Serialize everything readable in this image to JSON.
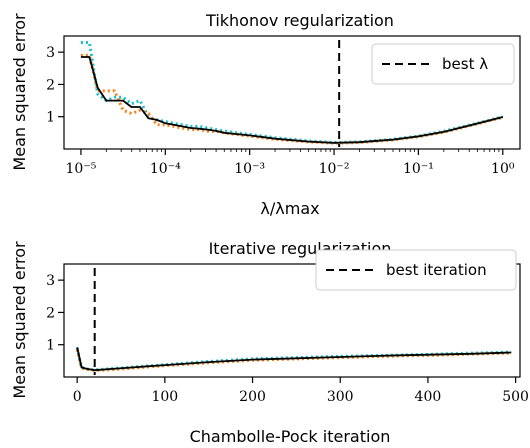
{
  "chart_data": [
    {
      "type": "line",
      "title": "Tikhonov regularization",
      "xlabel": "λ/λmax",
      "ylabel": "Mean squared error",
      "xscale": "log",
      "xlim": [
        6.3e-06,
        1.6
      ],
      "ylim": [
        0.0,
        3.5
      ],
      "xtick_labels": [
        "10⁻⁵",
        "10⁻⁴",
        "10⁻³",
        "10⁻²",
        "10⁻¹",
        "10⁰"
      ],
      "ytick_labels": [
        "1",
        "2",
        "3"
      ],
      "legend": {
        "position": "top-right",
        "entries": [
          "best λ"
        ]
      },
      "best_value": 0.0115,
      "series": [
        {
          "color": "#17becf",
          "style": "dotted",
          "x": [
            1e-05,
            1.26e-05,
            1.58e-05,
            2e-05,
            2.51e-05,
            3.16e-05,
            3.98e-05,
            5.01e-05,
            6.31e-05,
            7.94e-05,
            0.0001,
            0.000126,
            0.000158,
            0.0002,
            0.000251,
            0.000316,
            0.000398,
            0.000501,
            0.001,
            0.002,
            0.005,
            0.01,
            0.02,
            0.05,
            0.1,
            0.2,
            0.5,
            1.0
          ],
          "y": [
            3.3,
            3.3,
            1.7,
            1.5,
            1.6,
            1.6,
            1.4,
            1.5,
            1.0,
            0.9,
            0.85,
            0.8,
            0.75,
            0.7,
            0.7,
            0.65,
            0.6,
            0.55,
            0.45,
            0.35,
            0.25,
            0.2,
            0.22,
            0.3,
            0.4,
            0.55,
            0.8,
            1.0
          ]
        },
        {
          "color": "#ff7f0e",
          "style": "dotted",
          "x": [
            1e-05,
            1.26e-05,
            1.58e-05,
            2e-05,
            2.51e-05,
            3.16e-05,
            3.98e-05,
            5.01e-05,
            6.31e-05,
            7.94e-05,
            0.0001,
            0.000126,
            0.000158,
            0.0002,
            0.000251,
            0.000316,
            0.000398,
            0.000501,
            0.001,
            0.002,
            0.005,
            0.01,
            0.02,
            0.05,
            0.1,
            0.2,
            0.5,
            1.0
          ],
          "y": [
            2.9,
            2.9,
            1.8,
            1.8,
            1.8,
            1.2,
            1.1,
            1.2,
            1.1,
            0.75,
            0.75,
            0.7,
            0.65,
            0.6,
            0.6,
            0.55,
            0.55,
            0.5,
            0.4,
            0.3,
            0.22,
            0.18,
            0.2,
            0.28,
            0.38,
            0.52,
            0.78,
            0.98
          ]
        },
        {
          "color": "#000000",
          "style": "solid",
          "x": [
            1e-05,
            1.26e-05,
            1.58e-05,
            2e-05,
            2.51e-05,
            3.16e-05,
            3.98e-05,
            5.01e-05,
            6.31e-05,
            7.94e-05,
            0.0001,
            0.000126,
            0.000158,
            0.0002,
            0.000251,
            0.000316,
            0.000398,
            0.000501,
            0.001,
            0.002,
            0.005,
            0.01,
            0.02,
            0.05,
            0.1,
            0.2,
            0.5,
            1.0
          ],
          "y": [
            2.85,
            2.85,
            1.9,
            1.5,
            1.5,
            1.5,
            1.3,
            1.3,
            0.95,
            0.9,
            0.8,
            0.75,
            0.7,
            0.65,
            0.63,
            0.6,
            0.56,
            0.5,
            0.42,
            0.32,
            0.23,
            0.19,
            0.21,
            0.29,
            0.39,
            0.53,
            0.79,
            0.99
          ]
        }
      ]
    },
    {
      "type": "line",
      "title": "Iterative regularization",
      "xlabel": "Chambolle-Pock iteration",
      "ylabel": "Mean squared error",
      "xlim": [
        -15,
        505
      ],
      "ylim": [
        0.0,
        3.5
      ],
      "xtick_labels": [
        "0",
        "100",
        "200",
        "300",
        "400",
        "500"
      ],
      "ytick_labels": [
        "1",
        "2",
        "3"
      ],
      "legend": {
        "position": "top-right",
        "entries": [
          "best iteration"
        ]
      },
      "best_value": 20,
      "series": [
        {
          "color": "#17becf",
          "style": "dotted",
          "x": [
            0,
            5,
            10,
            20,
            40,
            60,
            80,
            100,
            150,
            200,
            250,
            300,
            350,
            400,
            450,
            495
          ],
          "y": [
            0.9,
            0.3,
            0.25,
            0.22,
            0.26,
            0.3,
            0.34,
            0.38,
            0.48,
            0.56,
            0.6,
            0.64,
            0.67,
            0.7,
            0.74,
            0.77
          ]
        },
        {
          "color": "#ff7f0e",
          "style": "dotted",
          "x": [
            0,
            5,
            10,
            20,
            40,
            60,
            80,
            100,
            150,
            200,
            250,
            300,
            350,
            400,
            450,
            495
          ],
          "y": [
            0.85,
            0.28,
            0.24,
            0.2,
            0.23,
            0.27,
            0.31,
            0.35,
            0.44,
            0.52,
            0.56,
            0.6,
            0.64,
            0.67,
            0.71,
            0.74
          ]
        },
        {
          "color": "#000000",
          "style": "solid",
          "x": [
            0,
            5,
            10,
            20,
            40,
            60,
            80,
            100,
            150,
            200,
            250,
            300,
            350,
            400,
            450,
            495
          ],
          "y": [
            0.92,
            0.3,
            0.26,
            0.21,
            0.25,
            0.29,
            0.33,
            0.37,
            0.46,
            0.54,
            0.58,
            0.62,
            0.66,
            0.69,
            0.72,
            0.76
          ]
        }
      ]
    }
  ]
}
